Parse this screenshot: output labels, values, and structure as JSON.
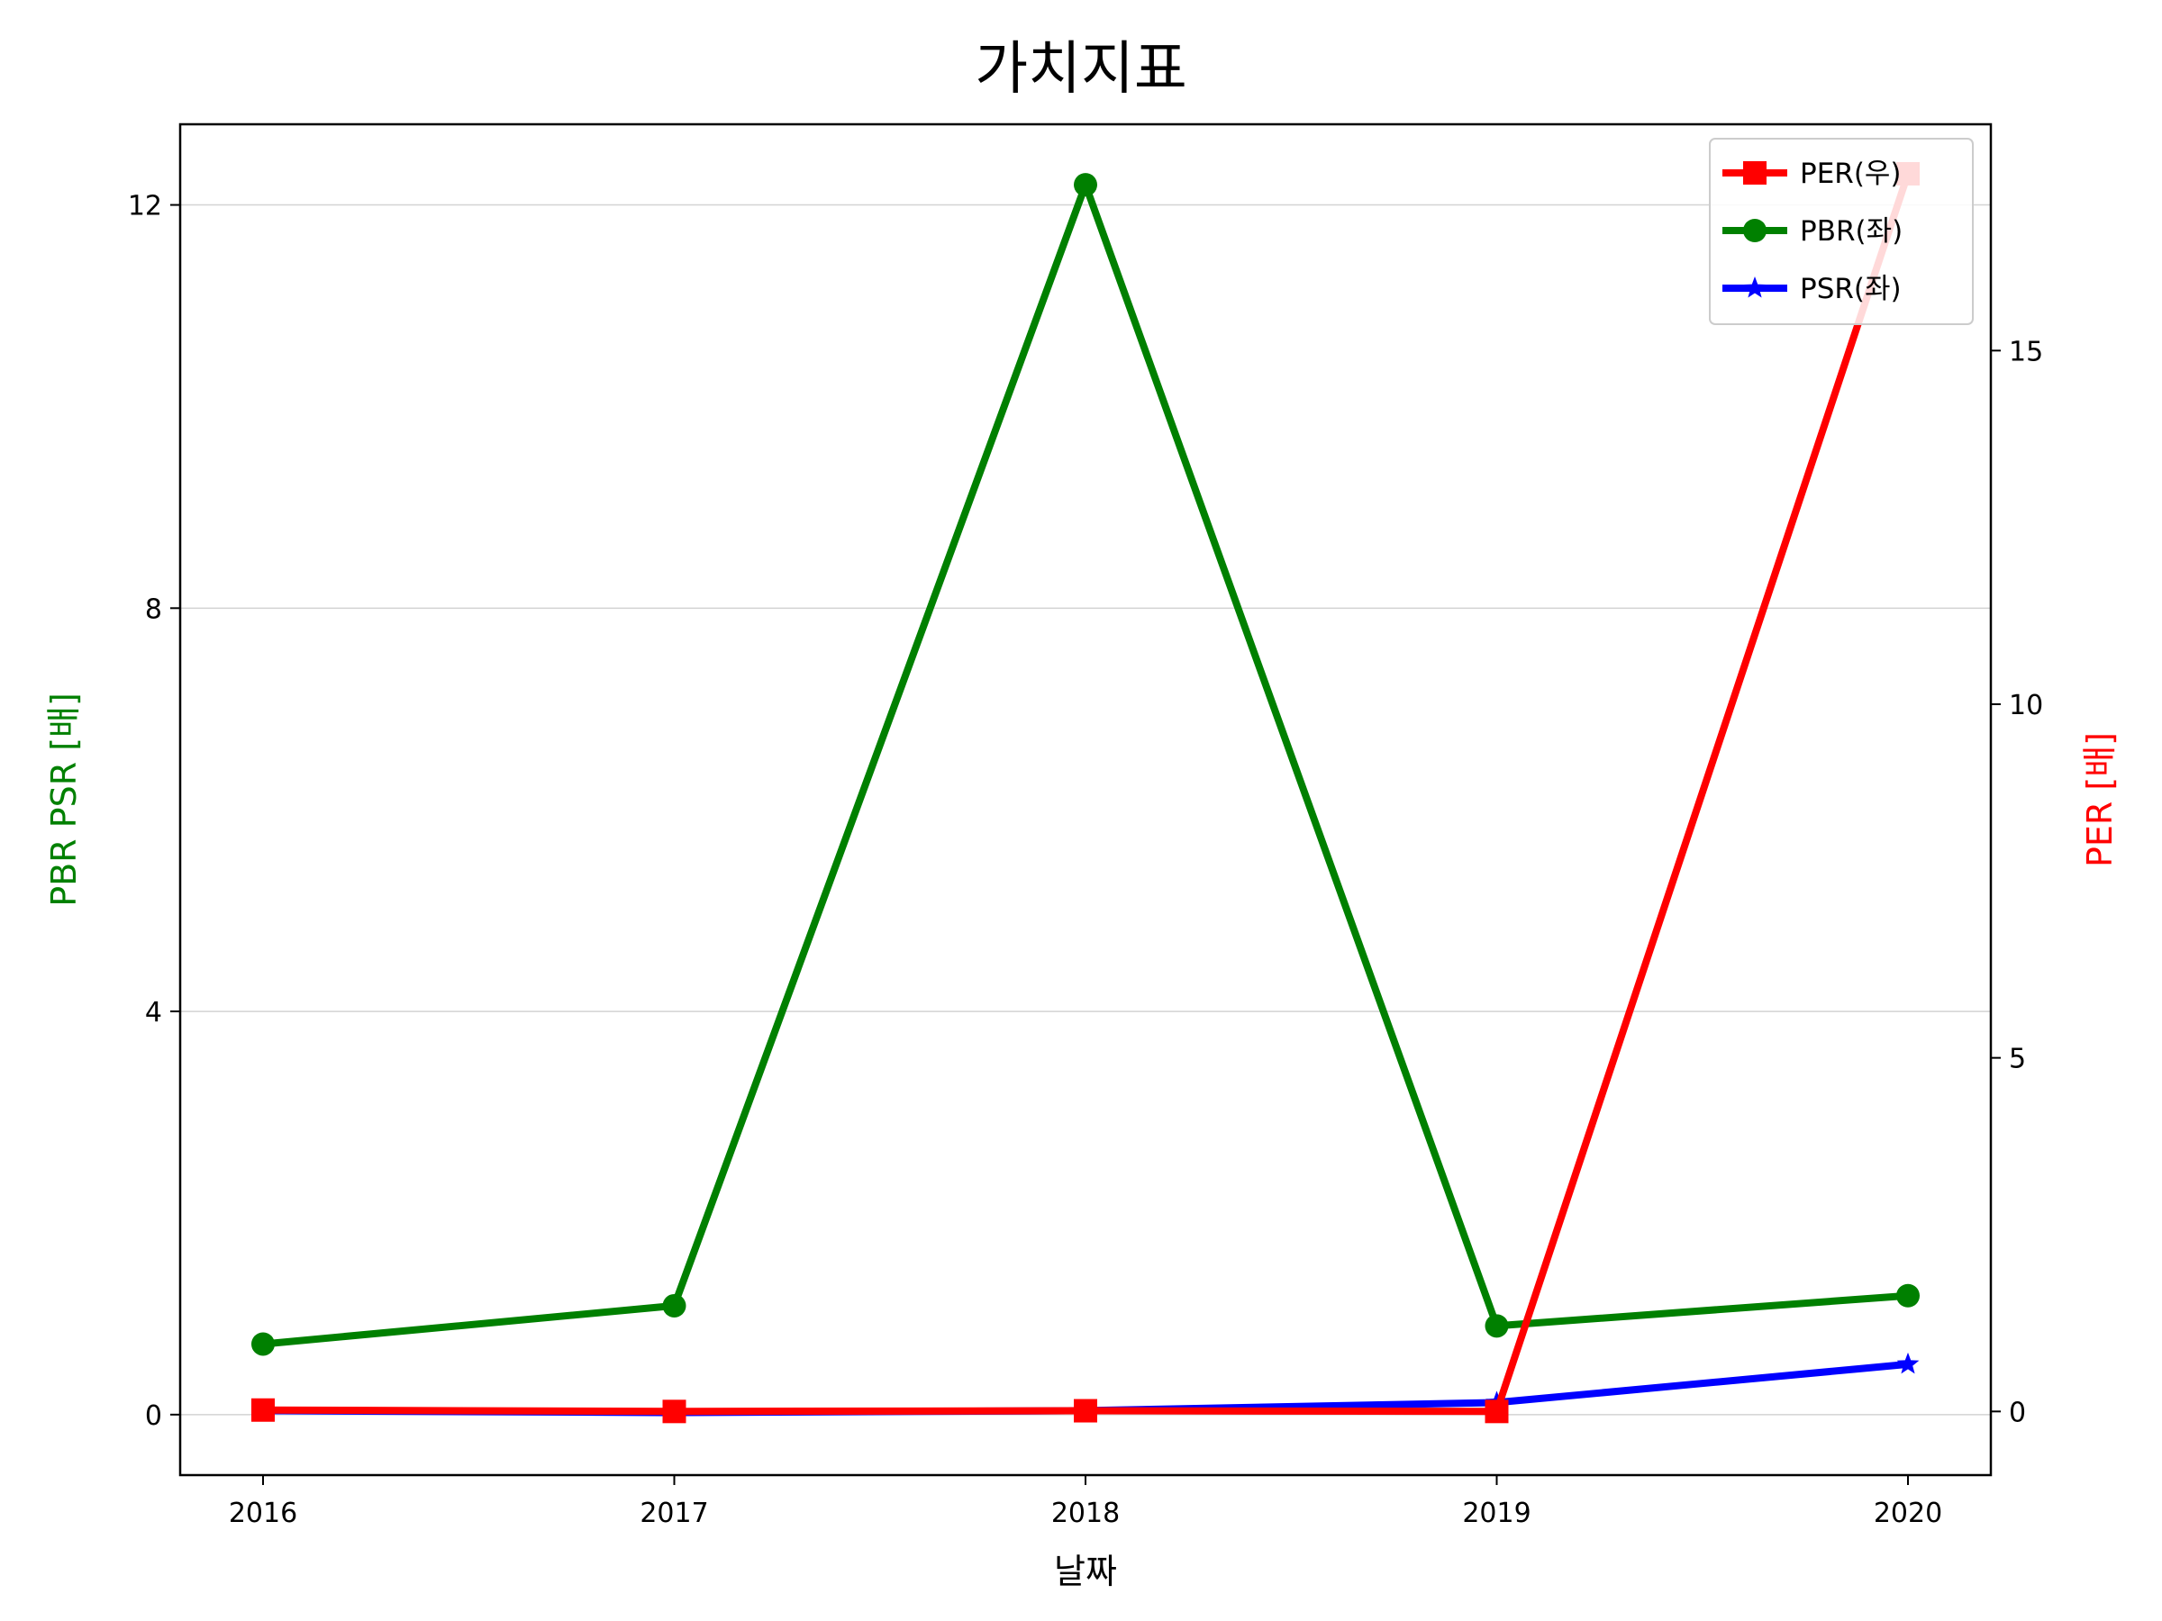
{
  "chart_data": {
    "type": "line",
    "title": "가치지표",
    "xlabel": "날짜",
    "ylabel_left": "PBR PSR [배]",
    "ylabel_right": "PER [배]",
    "x": [
      "2016",
      "2017",
      "2018",
      "2019",
      "2020"
    ],
    "ylim_left": [
      -0.6,
      12.8
    ],
    "yticks_left": [
      0,
      4,
      8,
      12
    ],
    "ylim_right": [
      -0.9,
      18.2
    ],
    "yticks_right": [
      0,
      5,
      10,
      15
    ],
    "grid": "horizontal",
    "legend_position": "upper-right",
    "series": [
      {
        "name": "PER(우)",
        "axis": "right",
        "color": "#ff0000",
        "marker": "square",
        "values": [
          0.02,
          0.0,
          0.01,
          0.0,
          17.5
        ]
      },
      {
        "name": "PBR(좌)",
        "axis": "left",
        "color": "#008000",
        "marker": "circle",
        "values": [
          0.7,
          1.08,
          12.2,
          0.88,
          1.18
        ]
      },
      {
        "name": "PSR(좌)",
        "axis": "left",
        "color": "#0000ff",
        "marker": "star",
        "values": [
          0.04,
          0.02,
          0.04,
          0.12,
          0.5
        ]
      }
    ]
  }
}
